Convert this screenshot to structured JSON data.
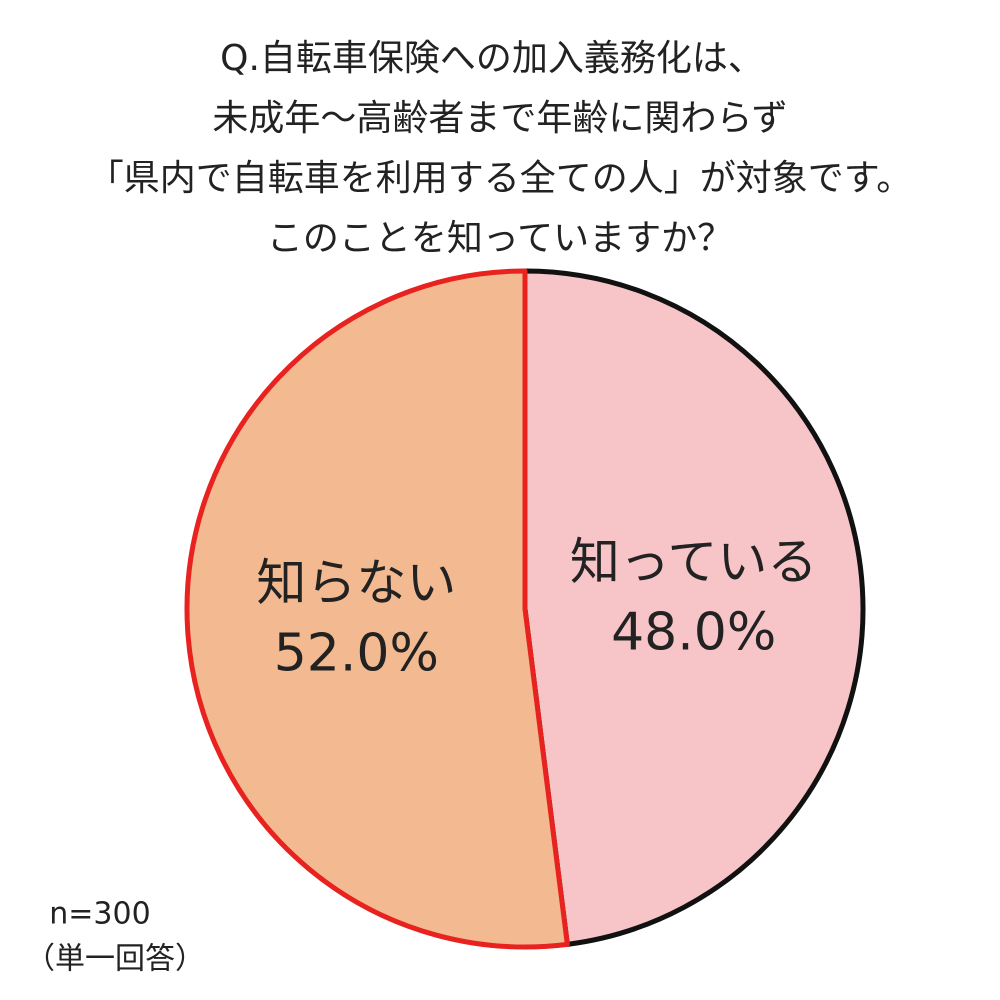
{
  "chart_data": {
    "type": "pie",
    "title": [
      "Q.自転車保険への加入義務化は、",
      "未成年～高齢者まで年齢に関わらず",
      "「県内で自転車を利用する全ての人」が対象です。",
      "このことを知っていますか？"
    ],
    "categories": [
      "知っている",
      "知らない"
    ],
    "values": [
      48.0,
      52.0
    ],
    "value_labels": [
      "48.0%",
      "52.0%"
    ],
    "colors": [
      "#f7c5c8",
      "#f3b990"
    ],
    "edge_colors": [
      "#111111",
      "#e8221f"
    ],
    "notes": [
      "n=300",
      "（単一回答）"
    ]
  }
}
